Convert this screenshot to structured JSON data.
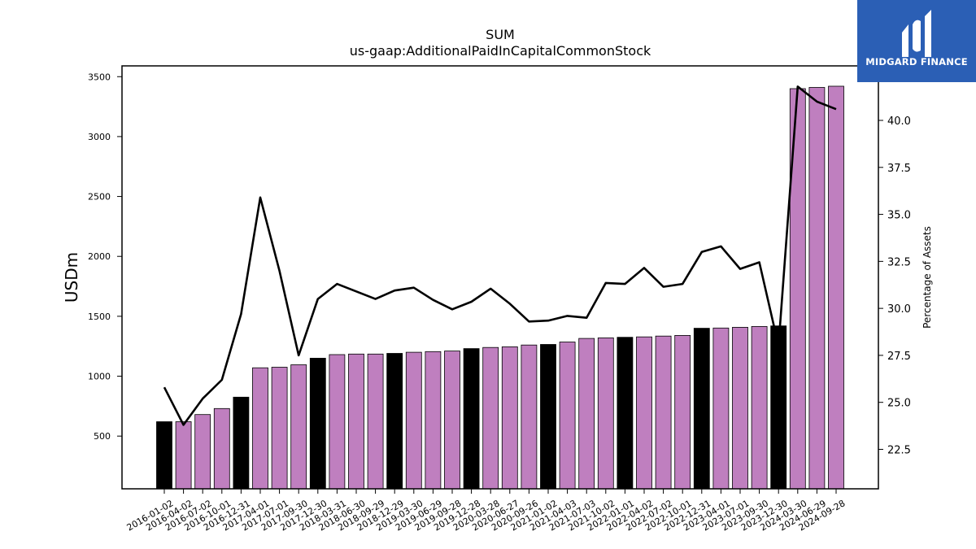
{
  "chart_data": {
    "type": "bar",
    "title_line1": "SUM",
    "title_line2": "us-gaap:AdditionalPaidInCapitalCommonStock",
    "ylabel": "USDm",
    "y2label": "Percentage of Assets",
    "ylim": [
      60,
      3590
    ],
    "y2lim": [
      20.4,
      42.9
    ],
    "yticks": [
      500,
      1000,
      1500,
      2000,
      2500,
      3000,
      3500
    ],
    "y2ticks": [
      22.5,
      25.0,
      27.5,
      30.0,
      32.5,
      35.0,
      37.5,
      40.0
    ],
    "y2tick_labels": [
      "22.5",
      "25.0",
      "27.5",
      "30.0",
      "32.5",
      "35.0",
      "37.5",
      "40.0"
    ],
    "categories": [
      "2016-01-02",
      "2016-04-02",
      "2016-07-02",
      "2016-10-01",
      "2016-12-31",
      "2017-04-01",
      "2017-07-01",
      "2017-09-30",
      "2017-12-30",
      "2018-03-31",
      "2018-06-30",
      "2018-09-29",
      "2018-12-29",
      "2019-03-30",
      "2019-06-29",
      "2019-09-28",
      "2019-12-28",
      "2020-03-28",
      "2020-06-27",
      "2020-09-26",
      "2021-01-02",
      "2021-04-03",
      "2021-07-03",
      "2021-10-02",
      "2022-01-01",
      "2022-04-02",
      "2022-07-02",
      "2022-10-01",
      "2022-12-31",
      "2023-04-01",
      "2023-07-01",
      "2023-09-30",
      "2023-12-30",
      "2024-03-30",
      "2024-06-29",
      "2024-09-28"
    ],
    "series": [
      {
        "kind": "bar",
        "values": [
          620,
          620,
          680,
          730,
          825,
          1070,
          1075,
          1095,
          1150,
          1180,
          1185,
          1185,
          1190,
          1200,
          1205,
          1210,
          1230,
          1240,
          1245,
          1260,
          1265,
          1285,
          1315,
          1320,
          1325,
          1328,
          1335,
          1340,
          1400,
          1402,
          1408,
          1415,
          1420,
          3400,
          3410,
          3420
        ],
        "annual": [
          true,
          false,
          false,
          false,
          true,
          false,
          false,
          false,
          true,
          false,
          false,
          false,
          true,
          false,
          false,
          false,
          true,
          false,
          false,
          false,
          true,
          false,
          false,
          false,
          true,
          false,
          false,
          false,
          true,
          false,
          false,
          false,
          true,
          false,
          false,
          false
        ],
        "color": "#bf7fbf",
        "annual_color": "#000000"
      },
      {
        "kind": "line",
        "axis": "right",
        "values": [
          25.8,
          23.8,
          25.2,
          26.2,
          29.7,
          35.9,
          32.0,
          27.5,
          30.5,
          31.3,
          30.9,
          30.5,
          30.95,
          31.1,
          30.45,
          29.95,
          30.35,
          31.05,
          30.25,
          29.3,
          29.35,
          29.6,
          29.5,
          31.35,
          31.3,
          32.15,
          31.15,
          31.3,
          33.0,
          33.3,
          32.1,
          32.45,
          28.0,
          41.8,
          41.0,
          40.6
        ],
        "color": "#000000"
      }
    ],
    "grid": false,
    "legend": "none"
  },
  "logo": {
    "text": "MIDGARD FINANCE",
    "bg_color": "#2b5fb5"
  }
}
